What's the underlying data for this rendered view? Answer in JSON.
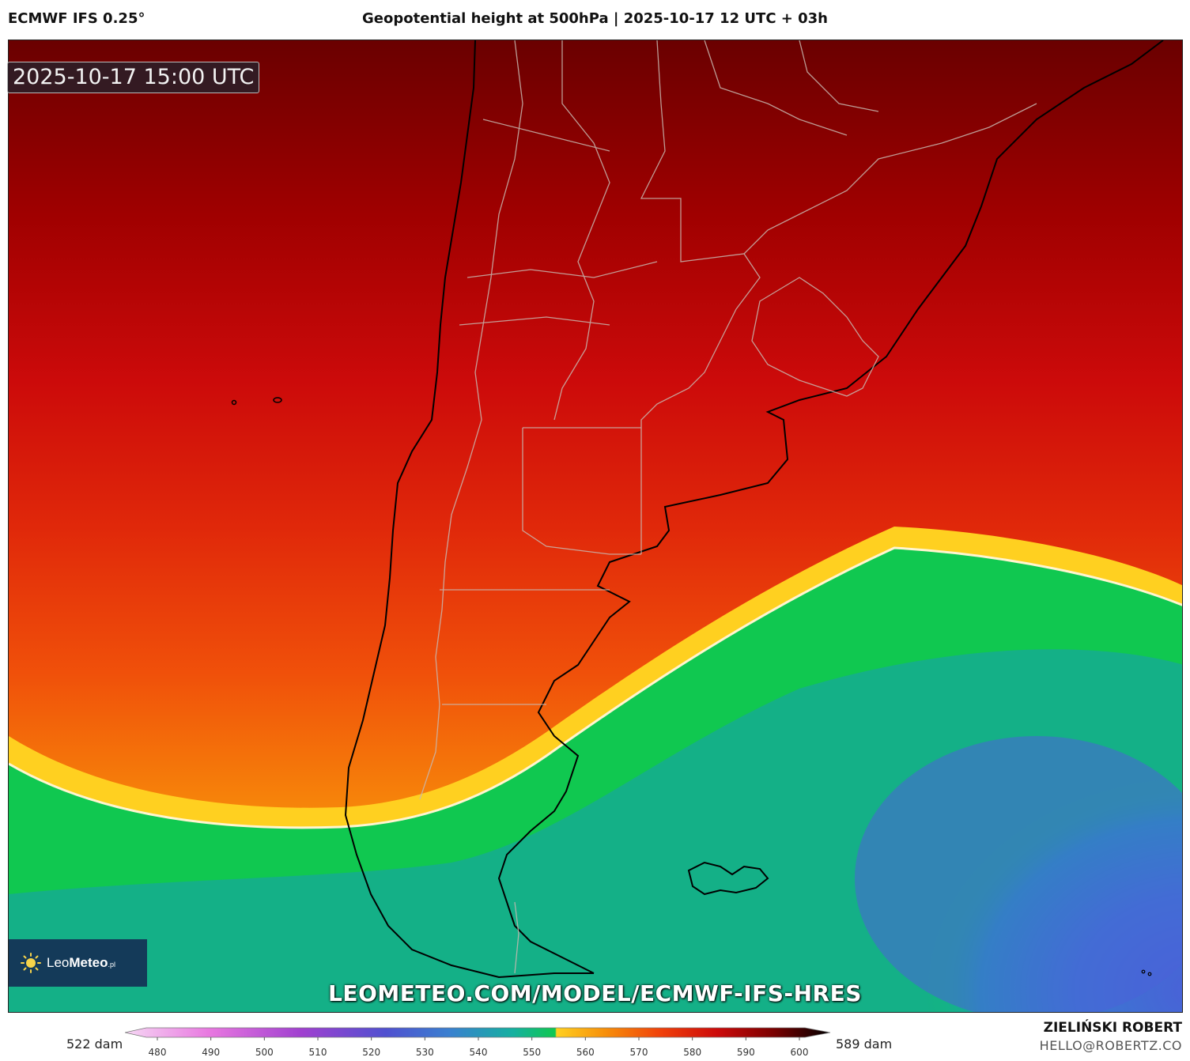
{
  "header": {
    "model": "ECMWF IFS 0.25°",
    "title": "Geopotential height at 500hPa | 2025-10-17 12 UTC + 03h"
  },
  "timestamp": "2025-10-17 15:00 UTC",
  "logo": {
    "brand_light": "Leo",
    "brand_bold": "Meteo",
    "suffix": ".pl"
  },
  "watermark": "LEOMETEO.COM/MODEL/ECMWF-IFS-HRES",
  "colorbar": {
    "min_label": "522 dam",
    "max_label": "589 dam",
    "ticks": [
      "480",
      "490",
      "500",
      "510",
      "520",
      "530",
      "540",
      "550",
      "560",
      "570",
      "580",
      "590",
      "600"
    ]
  },
  "credit": {
    "name": "ZIELIŃSKI ROBERT",
    "email": "HELLO@ROBERTZ.CO"
  },
  "colors": {
    "dark_red": "#6a0000",
    "red": "#cc0a0a",
    "orange_red": "#f0400a",
    "orange": "#f79a0a",
    "yellow": "#ffd020",
    "green": "#10c850",
    "teal": "#10a8a0",
    "blue": "#2a7ad0",
    "indigo": "#4a64d8"
  }
}
